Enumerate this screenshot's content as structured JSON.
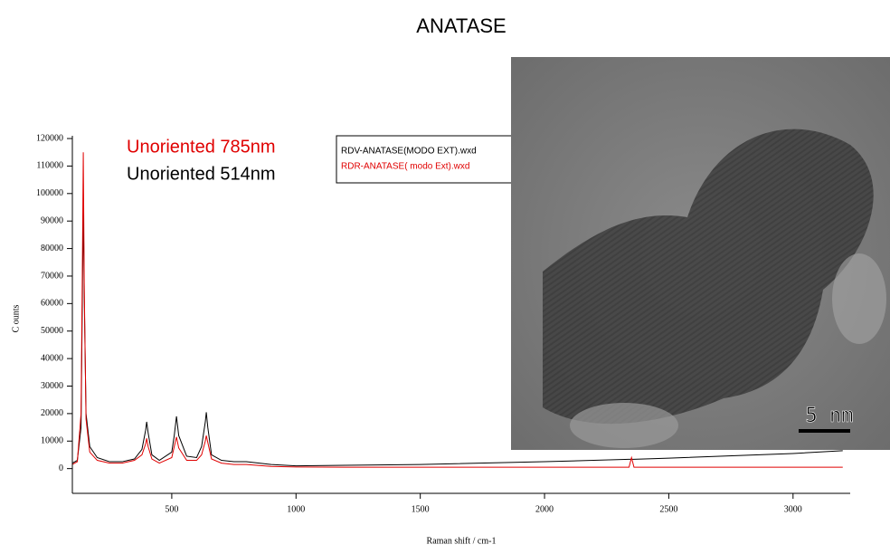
{
  "chart_data": {
    "type": "line",
    "title": "ANATASE",
    "xlabel": "Raman shift / cm-1",
    "ylabel": "C ounts",
    "annotations": [
      {
        "text": "Unoriented 785nm",
        "color": "#e00000"
      },
      {
        "text": "Unoriented 514nm",
        "color": "#000000"
      }
    ],
    "x": [
      100,
      120,
      135,
      140,
      144,
      148,
      155,
      170,
      200,
      250,
      300,
      350,
      380,
      395,
      399,
      405,
      420,
      450,
      500,
      510,
      519,
      528,
      560,
      600,
      620,
      635,
      639,
      645,
      660,
      700,
      750,
      800,
      900,
      1000,
      1200,
      1500,
      2000,
      2340,
      2350,
      2360,
      2500,
      3000,
      3200
    ],
    "series": [
      {
        "name": "RDV-ANATASE(MODO EXT).wxd",
        "color": "#000000",
        "values": [
          2000,
          3000,
          15000,
          60000,
          96000,
          62000,
          20000,
          8000,
          4000,
          2500,
          2500,
          3500,
          7000,
          14000,
          17000,
          13000,
          5000,
          3000,
          6000,
          12000,
          19000,
          12000,
          4500,
          4000,
          8000,
          17000,
          20500,
          15000,
          5000,
          3000,
          2500,
          2500,
          1500,
          1000,
          1200,
          1500,
          2500,
          3400,
          3400,
          3400,
          3800,
          5500,
          6500
        ]
      },
      {
        "name": "RDR-ANATASE( modo Ext).wxd",
        "color": "#e00000",
        "values": [
          1500,
          2500,
          20000,
          70000,
          115000,
          65000,
          18000,
          6000,
          3000,
          2000,
          2000,
          3000,
          5000,
          9000,
          11000,
          8000,
          3500,
          2000,
          4000,
          8000,
          11500,
          7500,
          3000,
          3000,
          5000,
          10000,
          12000,
          9500,
          3500,
          2000,
          1500,
          1500,
          800,
          600,
          500,
          500,
          500,
          500,
          4000,
          500,
          500,
          500,
          500
        ]
      }
    ],
    "xlim": [
      100,
      3230
    ],
    "xticks": [
      500,
      1000,
      1500,
      2000,
      2500,
      3000
    ],
    "ylim": [
      -9000,
      121000
    ],
    "yticks": [
      0,
      10000,
      20000,
      30000,
      40000,
      50000,
      60000,
      70000,
      80000,
      90000,
      100000,
      110000,
      120000
    ],
    "image": {
      "scale_bar": "5 nm"
    }
  }
}
